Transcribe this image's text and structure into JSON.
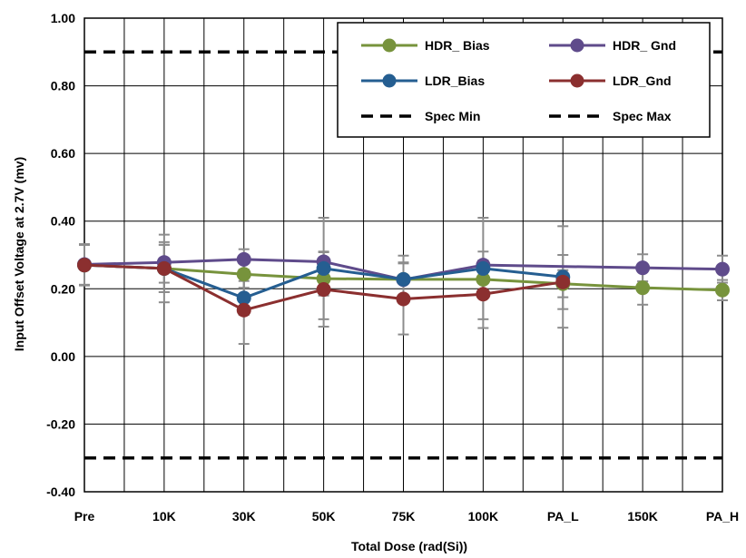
{
  "chart_data": {
    "type": "line",
    "title": "",
    "xlabel": "Total Dose (rad(Si))",
    "ylabel": "Input Offset Voltage at 2.7V  (mv)",
    "categories": [
      "Pre",
      "10K",
      "30K",
      "50K",
      "75K",
      "100K",
      "PA_L",
      "150K",
      "PA_H"
    ],
    "ylim": [
      -0.4,
      1.0
    ],
    "yticks": [
      1.0,
      0.8,
      0.6,
      0.4,
      0.2,
      0.0,
      -0.2,
      -0.4
    ],
    "ytick_labels": [
      "1.00",
      "0.80",
      "0.60",
      "0.40",
      "0.20",
      "0.00",
      "-0.20",
      "-0.40"
    ],
    "grid": true,
    "legend_position": "top-right",
    "series": [
      {
        "name": "HDR_ Bias",
        "color": "#77933c",
        "values": [
          0.27,
          0.26,
          0.243,
          0.23,
          0.228,
          0.228,
          0.215,
          0.203,
          0.196
        ],
        "errors": [
          0.06,
          0.07,
          0.04,
          0.05,
          0.05,
          0.04,
          0.04,
          0.05,
          0.03
        ]
      },
      {
        "name": "HDR_ Gnd",
        "color": "#5f4b8b",
        "values": [
          0.272,
          0.278,
          0.287,
          0.28,
          0.227,
          0.27,
          null,
          0.262,
          0.258
        ],
        "errors": [
          0.06,
          0.06,
          0.03,
          0.03,
          0.05,
          0.04,
          null,
          0.04,
          0.04
        ]
      },
      {
        "name": "LDR_Bias",
        "color": "#255e91",
        "values": [
          0.27,
          0.26,
          0.173,
          0.26,
          0.228,
          0.26,
          0.235,
          null,
          null
        ],
        "errors": [
          0.06,
          0.07,
          0.05,
          0.15,
          0.07,
          0.15,
          0.15,
          null,
          null
        ]
      },
      {
        "name": "LDR_Gnd",
        "color": "#8b2f2f",
        "values": [
          0.27,
          0.26,
          0.137,
          0.198,
          0.17,
          0.184,
          0.22,
          null,
          null
        ],
        "errors": [
          0.06,
          0.1,
          0.1,
          0.11,
          0.105,
          0.1,
          0.08,
          null,
          null
        ]
      }
    ],
    "reference_lines": [
      {
        "name": "Spec Min",
        "value": 0.9,
        "color": "#000000",
        "style": "dashed"
      },
      {
        "name": "Spec Max",
        "value": -0.3,
        "color": "#000000",
        "style": "dashed"
      }
    ]
  }
}
